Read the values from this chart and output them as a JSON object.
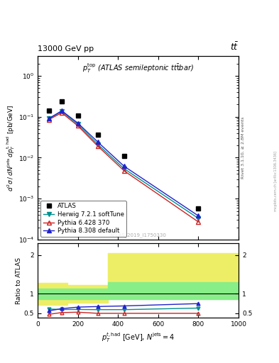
{
  "title_top": "13000 GeV pp",
  "title_right": "t#bar{t}",
  "annotation": "$p_T^{\\rm top}$ (ATLAS semileptonic tt̄bar)",
  "watermark": "ATLAS_2019_I1750330",
  "right_label1": "Rivet 3.1.10, ≥ 2.8M events",
  "right_label2": "mcplots.cern.ch [arXiv:1306.3436]",
  "xlabel": "$p_T^{t,\\rm had}$ [GeV], $N^{\\rm jets} = 4$",
  "ylabel": "$d^2\\sigma\\,/\\,dN^{\\rm jets}\\,dp_T^{\\rm t,had}$ [pb/GeV]",
  "ylabel_ratio": "Ratio to ATLAS",
  "xlim": [
    0,
    1000
  ],
  "ylim_main": [
    0.0001,
    3
  ],
  "ylim_ratio": [
    0.39,
    2.3
  ],
  "atlas_x": [
    55,
    120,
    200,
    300,
    430,
    800
  ],
  "atlas_y": [
    0.14,
    0.24,
    0.105,
    0.036,
    0.011,
    0.00057
  ],
  "herwig_x": [
    55,
    120,
    200,
    300,
    430,
    800
  ],
  "herwig_y": [
    0.09,
    0.135,
    0.065,
    0.021,
    0.0054,
    0.00033
  ],
  "pythia6_x": [
    55,
    120,
    200,
    300,
    430,
    800
  ],
  "pythia6_y": [
    0.085,
    0.125,
    0.06,
    0.019,
    0.0048,
    0.00027
  ],
  "pythia8_x": [
    55,
    120,
    200,
    300,
    430,
    800
  ],
  "pythia8_y": [
    0.09,
    0.14,
    0.07,
    0.024,
    0.0062,
    0.00038
  ],
  "herwig_ratio_x": [
    55,
    120,
    200,
    300,
    430,
    800
  ],
  "herwig_ratio_y": [
    0.61,
    0.6,
    0.6,
    0.595,
    0.595,
    0.635
  ],
  "pythia6_ratio_x": [
    55,
    120,
    200,
    300,
    430,
    800
  ],
  "pythia6_ratio_y": [
    0.475,
    0.52,
    0.53,
    0.5,
    0.5,
    0.5
  ],
  "pythia8_ratio_x": [
    55,
    120,
    200,
    300,
    430,
    800
  ],
  "pythia8_ratio_y": [
    0.565,
    0.62,
    0.66,
    0.675,
    0.69,
    0.75
  ],
  "color_atlas": "#000000",
  "color_herwig": "#009090",
  "color_pythia6": "#cc2222",
  "color_pythia8": "#2222cc",
  "color_green": "#88ee88",
  "color_yellow": "#eeee66",
  "legend_atlas": "ATLAS",
  "legend_herwig": "Herwig 7.2.1 softTune",
  "legend_pythia6": "Pythia 6.428 370",
  "legend_pythia8": "Pythia 8.308 default"
}
